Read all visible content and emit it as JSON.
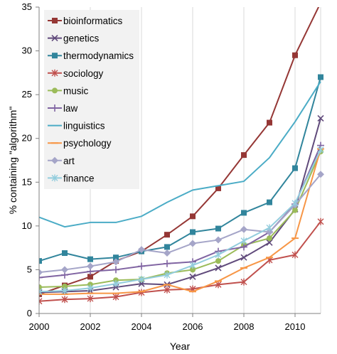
{
  "chart_data": {
    "type": "line",
    "title": "",
    "xlabel": "Year",
    "ylabel": "% containing \"algorithm\"",
    "xlim": [
      2000,
      2011
    ],
    "ylim": [
      0,
      35
    ],
    "x_ticks": [
      2000,
      2002,
      2004,
      2006,
      2008,
      2010
    ],
    "y_ticks": [
      0,
      5,
      10,
      15,
      20,
      25,
      30,
      35
    ],
    "grid": "vertical",
    "legend_position": "top-left",
    "x": [
      2000,
      2001,
      2002,
      2003,
      2004,
      2005,
      2006,
      2007,
      2008,
      2009,
      2010,
      2011
    ],
    "series": [
      {
        "name": "bioinformatics",
        "color": "#953735",
        "marker": "square",
        "values": [
          2.2,
          3.2,
          4.2,
          6.0,
          7.1,
          9.0,
          11.1,
          14.3,
          18.1,
          21.8,
          29.5,
          35.5
        ]
      },
      {
        "name": "genetics",
        "color": "#604a7b",
        "marker": "x",
        "values": [
          2.4,
          2.5,
          2.6,
          3.0,
          3.4,
          3.3,
          4.2,
          5.2,
          6.4,
          8.1,
          11.9,
          22.3
        ]
      },
      {
        "name": "thermodynamics",
        "color": "#31859c",
        "marker": "square",
        "values": [
          6.0,
          6.9,
          6.2,
          6.4,
          7.1,
          7.6,
          9.3,
          9.7,
          11.5,
          12.7,
          16.6,
          27.0
        ]
      },
      {
        "name": "sociology",
        "color": "#c0504d",
        "marker": "star",
        "values": [
          1.4,
          1.6,
          1.7,
          1.9,
          2.4,
          2.7,
          2.8,
          3.3,
          3.6,
          6.1,
          6.7,
          10.5
        ]
      },
      {
        "name": "music",
        "color": "#9bbb59",
        "marker": "circle",
        "values": [
          3.0,
          3.1,
          3.3,
          3.8,
          3.9,
          4.6,
          5.0,
          6.0,
          7.8,
          8.6,
          11.8,
          18.5
        ]
      },
      {
        "name": "law",
        "color": "#8064a2",
        "marker": "plus",
        "values": [
          4.1,
          4.4,
          4.8,
          5.0,
          5.4,
          5.7,
          5.9,
          7.1,
          7.6,
          9.3,
          12.5,
          19.2
        ]
      },
      {
        "name": "linguistics",
        "color": "#4bacc6",
        "marker": "none",
        "values": [
          11.0,
          9.9,
          10.4,
          10.4,
          11.1,
          12.7,
          14.1,
          14.6,
          15.1,
          17.8,
          21.9,
          26.5
        ]
      },
      {
        "name": "psychology",
        "color": "#f79646",
        "marker": "dash",
        "values": [
          2.2,
          2.2,
          2.3,
          2.3,
          2.5,
          3.3,
          2.5,
          3.7,
          5.2,
          6.4,
          8.6,
          18.8
        ]
      },
      {
        "name": "art",
        "color": "#a5a5c8",
        "marker": "diamond",
        "values": [
          4.7,
          5.0,
          5.4,
          5.9,
          7.3,
          6.9,
          8.0,
          8.4,
          9.6,
          9.3,
          12.4,
          15.9
        ]
      },
      {
        "name": "finance",
        "color": "#93cddd",
        "marker": "star",
        "values": [
          2.5,
          2.6,
          2.9,
          3.4,
          3.9,
          4.4,
          5.5,
          6.7,
          8.3,
          9.8,
          12.6,
          18.7
        ]
      }
    ]
  }
}
